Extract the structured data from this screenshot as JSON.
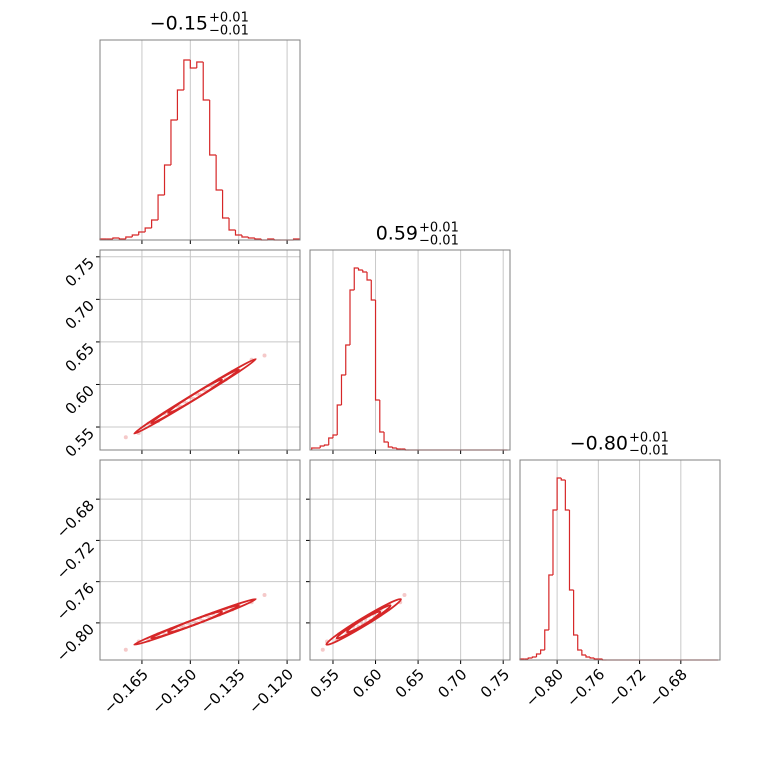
{
  "chart_data": {
    "type": "corner",
    "color": "#d62728",
    "grid": true,
    "params": [
      {
        "title": "−0.15",
        "title_plus": "+0.01",
        "title_minus": "−0.01",
        "xlim": [
          -0.178,
          -0.116
        ],
        "xticks": [
          {
            "value": -0.165,
            "label": "−0.165"
          },
          {
            "value": -0.15,
            "label": "−0.150"
          },
          {
            "value": -0.135,
            "label": "−0.135"
          },
          {
            "value": -0.12,
            "label": "−0.120"
          }
        ],
        "hist_ylim": [
          0,
          200
        ],
        "bins": [
          -0.178,
          -0.176,
          -0.174,
          -0.172,
          -0.17,
          -0.168,
          -0.166,
          -0.164,
          -0.162,
          -0.16,
          -0.158,
          -0.156,
          -0.154,
          -0.152,
          -0.15,
          -0.148,
          -0.146,
          -0.144,
          -0.142,
          -0.14,
          -0.138,
          -0.136,
          -0.134,
          -0.132,
          -0.13,
          -0.128,
          -0.126,
          -0.124,
          -0.122,
          -0.12,
          -0.118,
          -0.116
        ],
        "counts": [
          1,
          1,
          2,
          1,
          3,
          5,
          8,
          12,
          20,
          45,
          75,
          120,
          150,
          180,
          172,
          178,
          140,
          85,
          50,
          22,
          10,
          5,
          3,
          2,
          1,
          0,
          1,
          0,
          0,
          0,
          1
        ]
      },
      {
        "title": "0.59",
        "title_plus": "+0.01",
        "title_minus": "−0.01",
        "xlim": [
          0.523,
          0.758
        ],
        "xticks": [
          0.55,
          {
            "value": 0.6,
            "label": "0.60"
          },
          0.65,
          {
            "value": 0.7,
            "label": "0.70"
          },
          0.75
        ],
        "hist_ylim": [
          0,
          200
        ],
        "bins": [
          0.525,
          0.53,
          0.535,
          0.54,
          0.545,
          0.55,
          0.555,
          0.56,
          0.565,
          0.57,
          0.575,
          0.58,
          0.585,
          0.59,
          0.595,
          0.6,
          0.605,
          0.61,
          0.615,
          0.62,
          0.625,
          0.63,
          0.635,
          0.64,
          0.645,
          0.65,
          0.655,
          0.66,
          0.665,
          0.67,
          0.675,
          0.68,
          0.685,
          0.69,
          0.695,
          0.7,
          0.705,
          0.71,
          0.715,
          0.72,
          0.725,
          0.73,
          0.735,
          0.74,
          0.745,
          0.75,
          0.755
        ],
        "counts": [
          2,
          2,
          4,
          5,
          12,
          15,
          45,
          75,
          105,
          160,
          182,
          180,
          178,
          170,
          150,
          50,
          18,
          8,
          3,
          2,
          1,
          1,
          0,
          0,
          0,
          0,
          0,
          0,
          0,
          0,
          0,
          0,
          0,
          0,
          0,
          0,
          0,
          0,
          0,
          0,
          0,
          0,
          0,
          0,
          0,
          0
        ]
      },
      {
        "title": "−0.80",
        "title_plus": "+0.01",
        "title_minus": "−0.01",
        "xlim": [
          -0.836,
          -0.642
        ],
        "xticks": [
          {
            "value": -0.8,
            "label": "−0.80"
          },
          {
            "value": -0.76,
            "label": "−0.76"
          },
          {
            "value": -0.72,
            "label": "−0.72"
          },
          {
            "value": -0.68,
            "label": "−0.68"
          }
        ],
        "hist_ylim": [
          0,
          200
        ],
        "bins": [
          -0.836,
          -0.832,
          -0.828,
          -0.824,
          -0.82,
          -0.816,
          -0.812,
          -0.808,
          -0.804,
          -0.8,
          -0.796,
          -0.792,
          -0.788,
          -0.784,
          -0.78,
          -0.776,
          -0.772,
          -0.768,
          -0.764,
          -0.76,
          -0.756,
          -0.752,
          -0.748,
          -0.744,
          -0.74,
          -0.736,
          -0.732,
          -0.728,
          -0.724,
          -0.72,
          -0.716,
          -0.712,
          -0.708,
          -0.704,
          -0.7,
          -0.696,
          -0.692,
          -0.688,
          -0.684,
          -0.68,
          -0.676,
          -0.672,
          -0.668,
          -0.664,
          -0.66,
          -0.656,
          -0.652,
          -0.648,
          -0.644
        ],
        "counts": [
          1,
          1,
          2,
          3,
          6,
          10,
          30,
          85,
          150,
          182,
          180,
          150,
          70,
          25,
          10,
          5,
          3,
          2,
          1,
          1,
          0,
          0,
          0,
          0,
          0,
          0,
          0,
          0,
          0,
          0,
          0,
          0,
          0,
          0,
          0,
          0,
          0,
          0,
          0,
          0,
          0,
          0,
          0,
          0,
          0,
          0,
          0,
          0
        ]
      }
    ],
    "samples": [
      [
        -0.17,
        -0.166,
        -0.163,
        -0.16,
        -0.158,
        -0.156,
        -0.154,
        -0.153,
        -0.152,
        -0.151,
        -0.15,
        -0.149,
        -0.148,
        -0.147,
        -0.146,
        -0.145,
        -0.144,
        -0.143,
        -0.141,
        -0.139,
        -0.137,
        -0.135,
        -0.131,
        -0.127
      ],
      [
        0.538,
        0.543,
        0.554,
        0.557,
        0.566,
        0.567,
        0.575,
        0.574,
        0.58,
        0.578,
        0.585,
        0.583,
        0.589,
        0.588,
        0.594,
        0.592,
        0.599,
        0.597,
        0.606,
        0.606,
        0.615,
        0.616,
        0.629,
        0.634
      ],
      [
        -0.826,
        -0.818,
        -0.817,
        -0.811,
        -0.811,
        -0.806,
        -0.807,
        -0.803,
        -0.804,
        -0.8,
        -0.802,
        -0.798,
        -0.8,
        -0.796,
        -0.798,
        -0.793,
        -0.795,
        -0.791,
        -0.792,
        -0.787,
        -0.787,
        -0.782,
        -0.78,
        -0.773
      ]
    ]
  }
}
